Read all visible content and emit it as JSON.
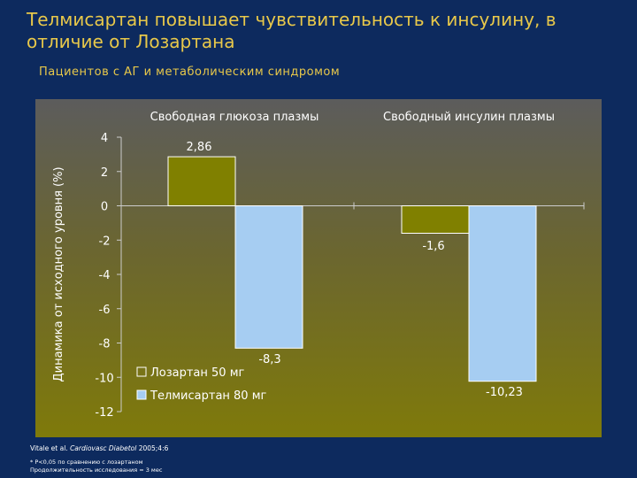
{
  "slide": {
    "title": "Телмисартан повышает чувствительность к инсулину, в отличие от Лозартана",
    "subtitle": "Пациентов с АГ и метаболическим синдромом",
    "citation_prefix": "Vitale et al. ",
    "citation_journal": "Cardiovasc Diabetol",
    "citation_suffix": " 2005;4:6",
    "footnote_1": "* P<0,05 по сравнению с лозартаном",
    "footnote_2": "Продолжительность исследования = 3 мес"
  },
  "chart_data": {
    "type": "bar",
    "categories": [
      "Свободная глюкоза плазмы",
      "Свободный инсулин плазмы"
    ],
    "series": [
      {
        "name": "Лозартан 50 мг",
        "values": [
          2.86,
          -1.6
        ],
        "labels": [
          "2,86",
          "-1,6"
        ],
        "color": "#808000"
      },
      {
        "name": "Телмисартан 80 мг",
        "values": [
          -8.3,
          -10.23
        ],
        "labels": [
          "-8,3",
          "-10,23"
        ],
        "color": "#a6cdf2"
      }
    ],
    "ylabel": "Динамика от исходного уровня (%)",
    "ylim": [
      -12,
      4
    ],
    "yticks": [
      4,
      2,
      0,
      -2,
      -4,
      -6,
      -8,
      -10,
      -12
    ],
    "ytick_labels": [
      "4",
      "2",
      "0",
      "-2",
      "-4",
      "-6",
      "-8",
      "-10",
      "-12"
    ],
    "legend_position": "bottom-left",
    "grid": false
  }
}
